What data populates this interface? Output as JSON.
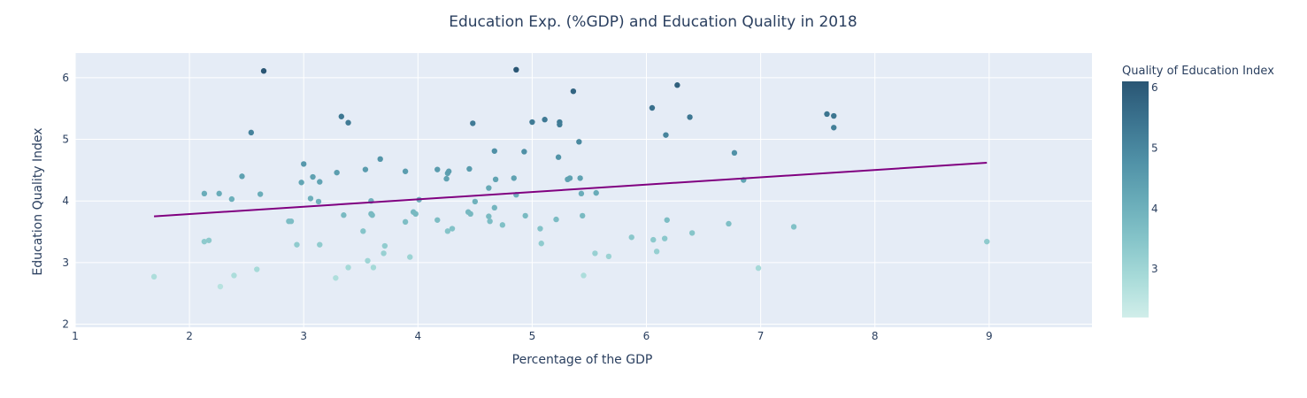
{
  "chart_data": {
    "type": "scatter",
    "title": "Education Exp. (%GDP) and Education Quality in 2018",
    "xlabel": "Percentage of the GDP",
    "ylabel": "Education Quality Index",
    "xlim": [
      1,
      9.9
    ],
    "ylim": [
      1.95,
      6.4
    ],
    "xticks": [
      1,
      2,
      3,
      4,
      5,
      6,
      7,
      8,
      9
    ],
    "yticks": [
      2,
      3,
      4,
      5,
      6
    ],
    "grid": true,
    "plot_background": "#e5ecf6",
    "colorbar": {
      "title": "Quality of Education Index",
      "range": [
        2.2,
        6.1
      ],
      "ticks": [
        3,
        4,
        5,
        6
      ],
      "colors": [
        "#d1eeea",
        "#a8dbd9",
        "#85c4c9",
        "#68abb8",
        "#4f90a6",
        "#3b738f",
        "#2a5674"
      ]
    },
    "trendline": {
      "color": "#800080",
      "x": [
        1.69,
        8.98
      ],
      "y": [
        3.75,
        4.62
      ]
    },
    "points": [
      [
        1.69,
        2.77
      ],
      [
        2.13,
        4.12
      ],
      [
        2.13,
        3.34
      ],
      [
        2.17,
        3.36
      ],
      [
        2.26,
        4.12
      ],
      [
        2.27,
        2.61
      ],
      [
        2.37,
        4.03
      ],
      [
        2.39,
        2.79
      ],
      [
        2.46,
        4.4
      ],
      [
        2.54,
        5.11
      ],
      [
        2.59,
        2.89
      ],
      [
        2.62,
        4.11
      ],
      [
        2.65,
        6.11
      ],
      [
        2.87,
        3.67
      ],
      [
        2.89,
        3.67
      ],
      [
        2.94,
        3.29
      ],
      [
        2.98,
        4.3
      ],
      [
        3.0,
        4.6
      ],
      [
        3.06,
        4.04
      ],
      [
        3.08,
        4.39
      ],
      [
        3.13,
        3.99
      ],
      [
        3.14,
        4.31
      ],
      [
        3.14,
        3.29
      ],
      [
        3.28,
        2.75
      ],
      [
        3.29,
        4.46
      ],
      [
        3.33,
        5.37
      ],
      [
        3.35,
        3.77
      ],
      [
        3.39,
        5.27
      ],
      [
        3.39,
        2.92
      ],
      [
        3.52,
        3.51
      ],
      [
        3.54,
        4.51
      ],
      [
        3.56,
        3.03
      ],
      [
        3.59,
        4.0
      ],
      [
        3.59,
        3.79
      ],
      [
        3.6,
        3.77
      ],
      [
        3.61,
        2.92
      ],
      [
        3.67,
        4.68
      ],
      [
        3.7,
        3.15
      ],
      [
        3.71,
        3.27
      ],
      [
        3.89,
        4.48
      ],
      [
        3.89,
        3.66
      ],
      [
        3.93,
        3.09
      ],
      [
        3.96,
        3.82
      ],
      [
        3.98,
        3.79
      ],
      [
        4.01,
        4.02
      ],
      [
        4.17,
        4.51
      ],
      [
        4.17,
        3.69
      ],
      [
        4.25,
        4.36
      ],
      [
        4.26,
        4.45
      ],
      [
        4.26,
        3.51
      ],
      [
        4.27,
        4.48
      ],
      [
        4.3,
        3.55
      ],
      [
        4.44,
        3.82
      ],
      [
        4.45,
        4.52
      ],
      [
        4.46,
        3.79
      ],
      [
        4.48,
        5.26
      ],
      [
        4.5,
        3.99
      ],
      [
        4.62,
        4.21
      ],
      [
        4.62,
        3.75
      ],
      [
        4.63,
        3.67
      ],
      [
        4.67,
        3.89
      ],
      [
        4.67,
        4.81
      ],
      [
        4.68,
        4.35
      ],
      [
        4.74,
        3.61
      ],
      [
        4.84,
        4.37
      ],
      [
        4.86,
        4.1
      ],
      [
        4.86,
        6.13
      ],
      [
        4.93,
        4.8
      ],
      [
        4.94,
        3.76
      ],
      [
        5.0,
        5.28
      ],
      [
        5.07,
        3.55
      ],
      [
        5.08,
        3.31
      ],
      [
        5.11,
        5.32
      ],
      [
        5.21,
        3.7
      ],
      [
        5.23,
        4.71
      ],
      [
        5.24,
        5.28
      ],
      [
        5.24,
        5.24
      ],
      [
        5.31,
        4.35
      ],
      [
        5.33,
        4.37
      ],
      [
        5.36,
        5.78
      ],
      [
        5.41,
        4.96
      ],
      [
        5.42,
        4.37
      ],
      [
        5.43,
        4.12
      ],
      [
        5.44,
        3.76
      ],
      [
        5.45,
        2.79
      ],
      [
        5.55,
        3.15
      ],
      [
        5.56,
        4.13
      ],
      [
        5.67,
        3.1
      ],
      [
        5.87,
        3.41
      ],
      [
        6.05,
        5.51
      ],
      [
        6.06,
        3.37
      ],
      [
        6.09,
        3.18
      ],
      [
        6.16,
        3.39
      ],
      [
        6.17,
        5.07
      ],
      [
        6.18,
        3.69
      ],
      [
        6.27,
        5.88
      ],
      [
        6.38,
        5.36
      ],
      [
        6.4,
        3.48
      ],
      [
        6.72,
        3.63
      ],
      [
        6.77,
        4.78
      ],
      [
        6.85,
        4.34
      ],
      [
        6.98,
        2.91
      ],
      [
        7.29,
        3.58
      ],
      [
        7.58,
        5.41
      ],
      [
        7.64,
        5.38
      ],
      [
        7.64,
        5.19
      ],
      [
        8.98,
        3.34
      ]
    ]
  }
}
